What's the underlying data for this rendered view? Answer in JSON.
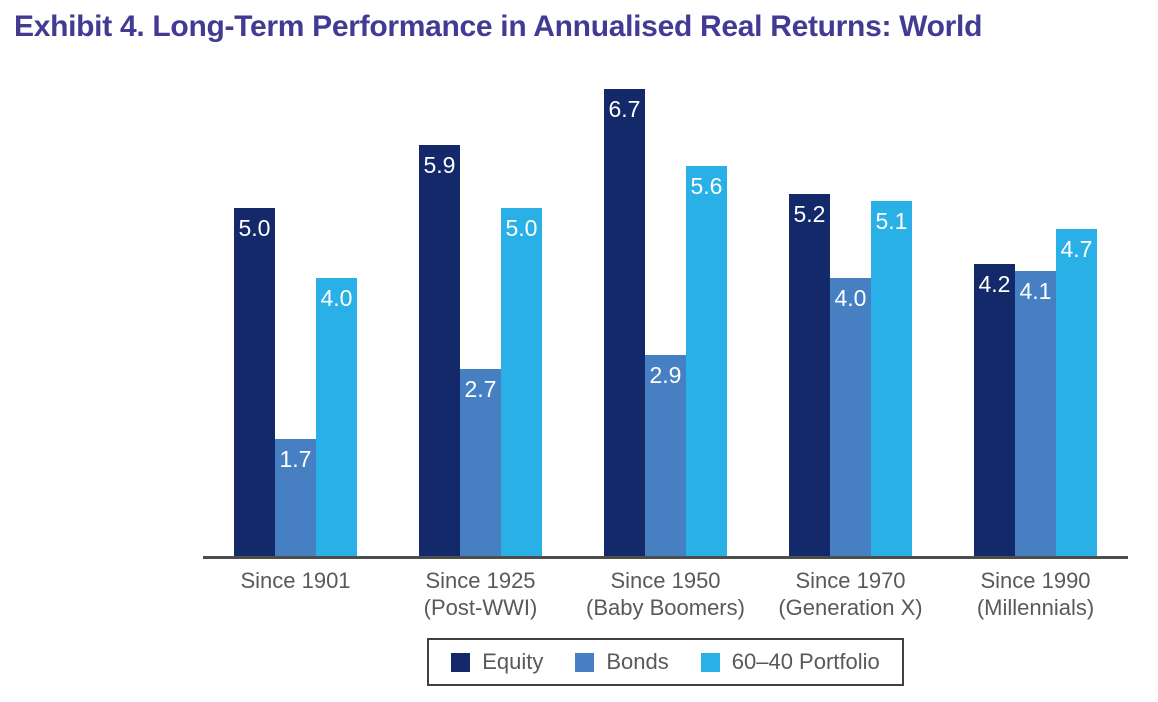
{
  "page": {
    "title": "Exhibit 4. Long-Term Performance in Annualised Real Returns: World"
  },
  "theme": {
    "background": "#FFFFFF",
    "title_color": "#423A93",
    "axis_line_color": "#4D4D4D",
    "label_color": "#595959",
    "value_label_color": "#FFFFFF",
    "legend_border_color": "#404040"
  },
  "chart_data": {
    "type": "bar",
    "title": "Exhibit 4. Long-Term Performance in Annualised Real Returns: World",
    "xlabel": "",
    "ylabel": "",
    "ylim": [
      0,
      7
    ],
    "grid": false,
    "legend_position": "bottom",
    "categories": [
      {
        "lines": [
          "Since 1901"
        ]
      },
      {
        "lines": [
          "Since 1925",
          "(Post-WWI)"
        ]
      },
      {
        "lines": [
          "Since 1950",
          "(Baby Boomers)"
        ]
      },
      {
        "lines": [
          "Since 1970",
          "(Generation X)"
        ]
      },
      {
        "lines": [
          "Since 1990",
          "(Millennials)"
        ]
      }
    ],
    "series": [
      {
        "name": "Equity",
        "color": "#13296A",
        "values": [
          5.0,
          5.9,
          6.7,
          5.2,
          4.2
        ],
        "labels": [
          "5.0",
          "5.9",
          "6.7",
          "5.2",
          "4.2"
        ]
      },
      {
        "name": "Bonds",
        "color": "#4680C2",
        "values": [
          1.7,
          2.7,
          2.9,
          4.0,
          4.1
        ],
        "labels": [
          "1.7",
          "2.7",
          "2.9",
          "4.0",
          "4.1"
        ]
      },
      {
        "name": "60–40 Portfolio",
        "color": "#29B0E6",
        "values": [
          4.0,
          5.0,
          5.6,
          5.1,
          4.7
        ],
        "labels": [
          "4.0",
          "5.0",
          "5.6",
          "5.1",
          "4.7"
        ]
      }
    ]
  }
}
